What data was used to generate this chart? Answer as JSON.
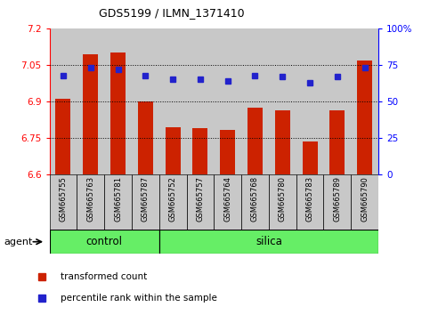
{
  "title": "GDS5199 / ILMN_1371410",
  "samples": [
    "GSM665755",
    "GSM665763",
    "GSM665781",
    "GSM665787",
    "GSM665752",
    "GSM665757",
    "GSM665764",
    "GSM665768",
    "GSM665780",
    "GSM665783",
    "GSM665789",
    "GSM665790"
  ],
  "transformed_count": [
    6.91,
    7.095,
    7.1,
    6.9,
    6.795,
    6.79,
    6.785,
    6.875,
    6.865,
    6.735,
    6.865,
    7.07
  ],
  "percentile_rank": [
    68,
    73,
    72,
    68,
    65,
    65,
    64,
    68,
    67,
    63,
    67,
    73
  ],
  "ylim_left": [
    6.6,
    7.2
  ],
  "ylim_right": [
    0,
    100
  ],
  "yticks_left": [
    6.6,
    6.75,
    6.9,
    7.05,
    7.2
  ],
  "yticks_right": [
    0,
    25,
    50,
    75,
    100
  ],
  "ytick_labels_left": [
    "6.6",
    "6.75",
    "6.9",
    "7.05",
    "7.2"
  ],
  "ytick_labels_right": [
    "0",
    "25",
    "50",
    "75",
    "100%"
  ],
  "grid_lines": [
    6.75,
    6.9,
    7.05
  ],
  "bar_color": "#cc2200",
  "dot_color": "#2222cc",
  "control_label": "control",
  "silica_label": "silica",
  "agent_label": "agent",
  "control_count": 4,
  "silica_count": 8,
  "bar_width": 0.55,
  "legend_bar_label": "transformed count",
  "legend_dot_label": "percentile rank within the sample",
  "col_bg_color": "#c8c8c8",
  "plot_bg_color": "#ffffff",
  "green_color": "#66ee66"
}
